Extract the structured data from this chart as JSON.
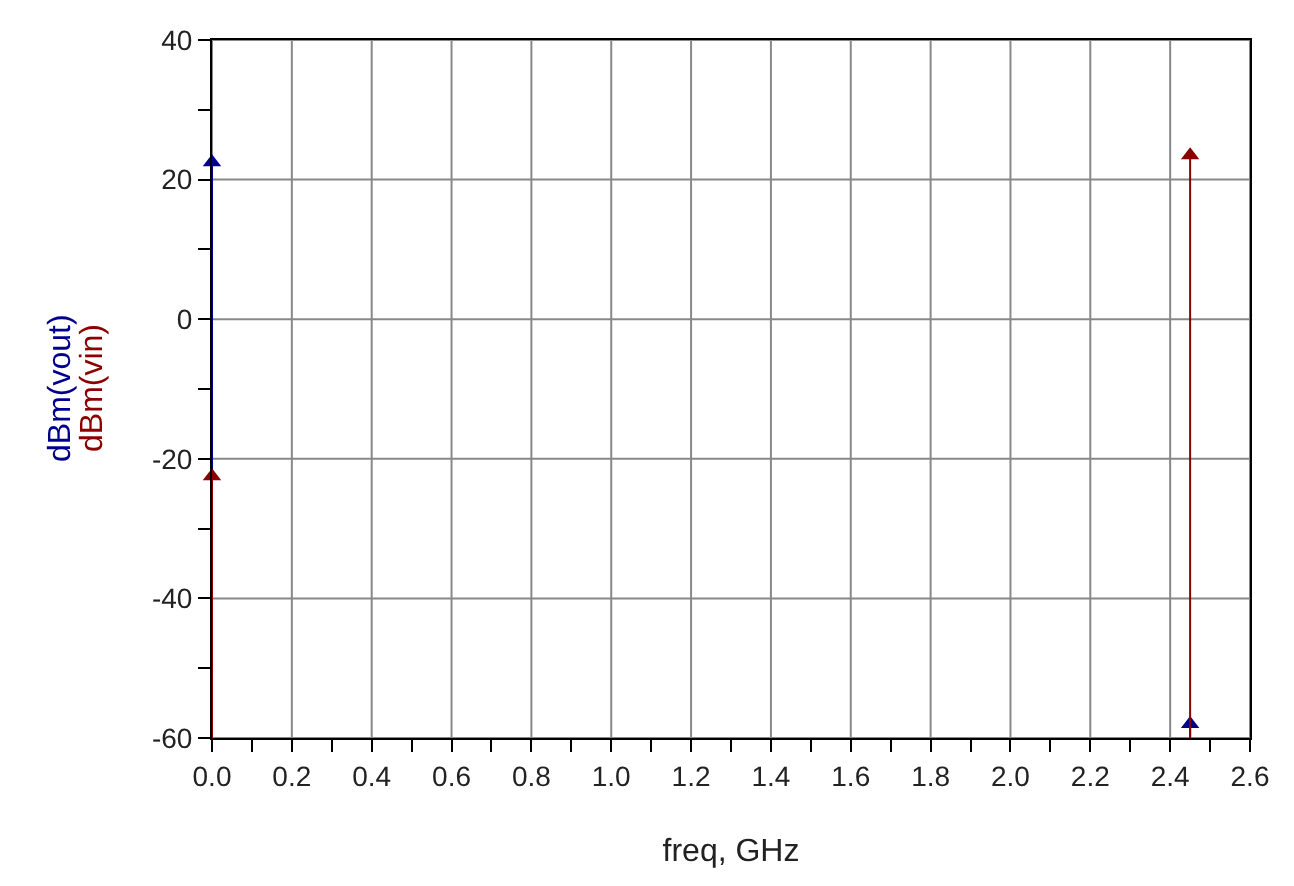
{
  "chart_data": {
    "type": "lollipop",
    "xlabel": "freq, GHz",
    "x": [
      0.0,
      2.45
    ],
    "series": [
      {
        "name": "dBm(vout)",
        "color": "#00008b",
        "values": [
          22.5,
          -58
        ]
      },
      {
        "name": "dBm(vin)",
        "color": "#8b0000",
        "values": [
          -22.5,
          23.5
        ]
      }
    ],
    "xlim": [
      0,
      2.6
    ],
    "ylim": [
      -60,
      40
    ],
    "xticks": [
      {
        "value": 0,
        "label": "0.0"
      },
      {
        "value": 0.1,
        "label": null
      },
      0.2,
      {
        "value": 0.3,
        "label": null
      },
      0.4,
      {
        "value": 0.5,
        "label": null
      },
      0.6,
      {
        "value": 0.7,
        "label": null
      },
      0.8,
      {
        "value": 0.9,
        "label": null
      },
      {
        "value": 1,
        "label": "1.0"
      },
      {
        "value": 1.1,
        "label": null
      },
      1.2,
      {
        "value": 1.3,
        "label": null
      },
      1.4,
      {
        "value": 1.5,
        "label": null
      },
      1.6,
      {
        "value": 1.7,
        "label": null
      },
      1.8,
      {
        "value": 1.9,
        "label": null
      },
      {
        "value": 2,
        "label": "2.0"
      },
      {
        "value": 2.1,
        "label": null
      },
      2.2,
      {
        "value": 2.3,
        "label": null
      },
      2.4,
      {
        "value": 2.5,
        "label": null
      },
      2.6
    ],
    "yticks": [
      -60,
      {
        "value": -50,
        "label": null
      },
      -40,
      {
        "value": -30,
        "label": null
      },
      -20,
      {
        "value": -10,
        "label": null
      },
      0,
      {
        "value": 10,
        "label": null
      },
      20,
      {
        "value": 30,
        "label": null
      },
      40
    ],
    "grid": true,
    "legend": false,
    "marker": "triangle"
  }
}
